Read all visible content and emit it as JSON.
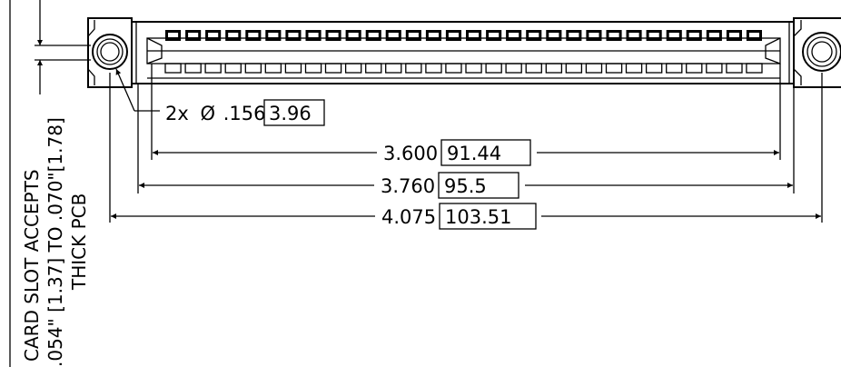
{
  "callouts": {
    "hole_qty": "2x",
    "hole_diameter_symbol": "Ø",
    "hole_diameter": ".156",
    "hole_diameter_mm": "3.96"
  },
  "dimensions": [
    {
      "inch": "3.600",
      "mm": "91.44"
    },
    {
      "inch": "3.760",
      "mm": "95.5"
    },
    {
      "inch": "4.075",
      "mm": "103.51"
    }
  ],
  "side_note": {
    "line1": "CARD SLOT ACCEPTS",
    "line2": ".054\" [1.37] TO .070\"[1.78]",
    "line3": "THICK PCB"
  },
  "connector": {
    "contact_pairs": 30,
    "mounting_holes": 2
  }
}
